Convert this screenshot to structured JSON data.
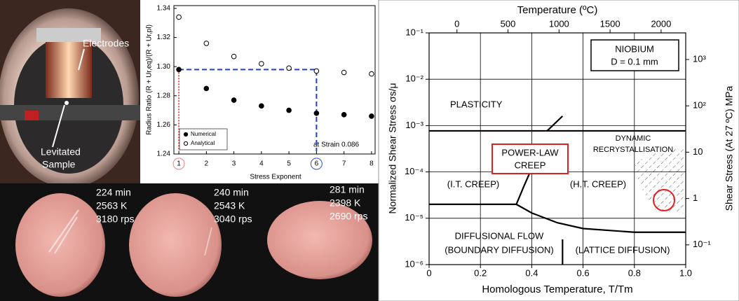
{
  "photos": {
    "apparatus": {
      "electrodes": "Electrodes",
      "sample": [
        "Levitated",
        "Sample"
      ]
    },
    "samples": [
      {
        "time": "224 min",
        "temperature": "2563 K",
        "rotation": "3180 rps"
      },
      {
        "time": "240 min",
        "temperature": "2543 K",
        "rotation": "3040 rps"
      },
      {
        "time": "281 min",
        "temperature": "2398 K",
        "rotation": "2690 rps"
      }
    ]
  },
  "chart_data": [
    {
      "type": "scatter",
      "xlabel": "Stress Exponent",
      "ylabel": "Radius Ratio (R + Ur,eq)/(R + Ur,pl)",
      "x": [
        1,
        2,
        3,
        4,
        5,
        6,
        7,
        8
      ],
      "series": [
        {
          "name": "Numerical",
          "color": "#000000",
          "marker": "filled",
          "values": [
            1.298,
            1.285,
            1.277,
            1.273,
            1.27,
            1.268,
            1.267,
            1.266
          ]
        },
        {
          "name": "Analytical",
          "color": "#000000",
          "marker": "open",
          "values": [
            1.334,
            1.316,
            1.307,
            1.302,
            1.299,
            1.297,
            1.296,
            1.295
          ]
        }
      ],
      "xlim": [
        0.82,
        8.13
      ],
      "xticks": [
        1,
        2,
        3,
        4,
        5,
        6,
        7,
        8
      ],
      "ylim": [
        1.24,
        1.34
      ],
      "yticks": [
        1.24,
        1.26,
        1.28,
        {
          "value": 1.3,
          "label": "1.30"
        },
        1.32,
        1.34
      ],
      "legend": "lower left",
      "annotations": [
        "at Strain 0.086"
      ]
    },
    {
      "type": "map",
      "xlabel": "Homologous Temperature, T/Tm",
      "ylabel": "Normalized Shear Stress σs/μ",
      "x2label": "Temperature (ºC)",
      "y2label": "Shear Stress (At 27 ºC) MPa",
      "xlim": [
        0,
        1
      ],
      "xticks": [
        0,
        0.2,
        0.4,
        0.6,
        0.8,
        {
          "value": 1,
          "label": "1.0"
        }
      ],
      "yscale": "log",
      "ylim": [
        1e-06,
        0.1
      ],
      "yticks": [
        {
          "value": 1e-06,
          "label": "10⁻⁶"
        },
        {
          "value": 1e-05,
          "label": "10⁻⁵"
        },
        {
          "value": 0.0001,
          "label": "10⁻⁴"
        },
        {
          "value": 0.001,
          "label": "10⁻³"
        },
        {
          "value": 0.01,
          "label": "10⁻²"
        },
        {
          "value": 0.1,
          "label": "10⁻¹"
        }
      ],
      "x2lim": [
        -273,
        2241
      ],
      "x2ticks": [
        0,
        500,
        1000,
        1500,
        2000
      ],
      "y2lim": [
        0.0375,
        3750
      ],
      "y2ticks": [
        {
          "value": 0.1,
          "label": "10⁻¹"
        },
        1,
        10,
        {
          "value": 100,
          "label": "10²"
        },
        {
          "value": 1000,
          "label": "10³"
        }
      ],
      "grid": true,
      "boundaries": [
        {
          "x": [
            0,
            1
          ],
          "y": [
            0.00077,
            0.00077
          ]
        },
        {
          "x": [
            0.46,
            0.52
          ],
          "y": [
            0.00077,
            0.0016
          ]
        },
        {
          "x": [
            0.34,
            0.37,
            0.41
          ],
          "y": [
            2e-05,
            5e-05,
            0.00016
          ]
        },
        {
          "x": [
            0,
            0.34
          ],
          "y": [
            2e-05,
            2e-05
          ]
        },
        {
          "x": [
            0.34,
            0.4,
            0.5,
            0.6,
            0.8,
            1
          ],
          "y": [
            2e-05,
            1.3e-05,
            8e-06,
            6e-06,
            5e-06,
            5e-06
          ]
        },
        {
          "x": [
            0.52,
            0.52
          ],
          "y": [
            1e-06,
            3.5e-06
          ]
        }
      ],
      "annotations": [
        "NIOBIUM",
        "D = 0.1 mm",
        "PLASTICITY",
        "POWER-LAW",
        "CREEP",
        "DYNAMIC",
        "RECRYSTALLISATION",
        "(I.T. CREEP)",
        "(H.T. CREEP)",
        "DIFFUSIONAL FLOW",
        "(BOUNDARY DIFFUSION)",
        "(LATTICE DIFFUSION)"
      ]
    }
  ]
}
